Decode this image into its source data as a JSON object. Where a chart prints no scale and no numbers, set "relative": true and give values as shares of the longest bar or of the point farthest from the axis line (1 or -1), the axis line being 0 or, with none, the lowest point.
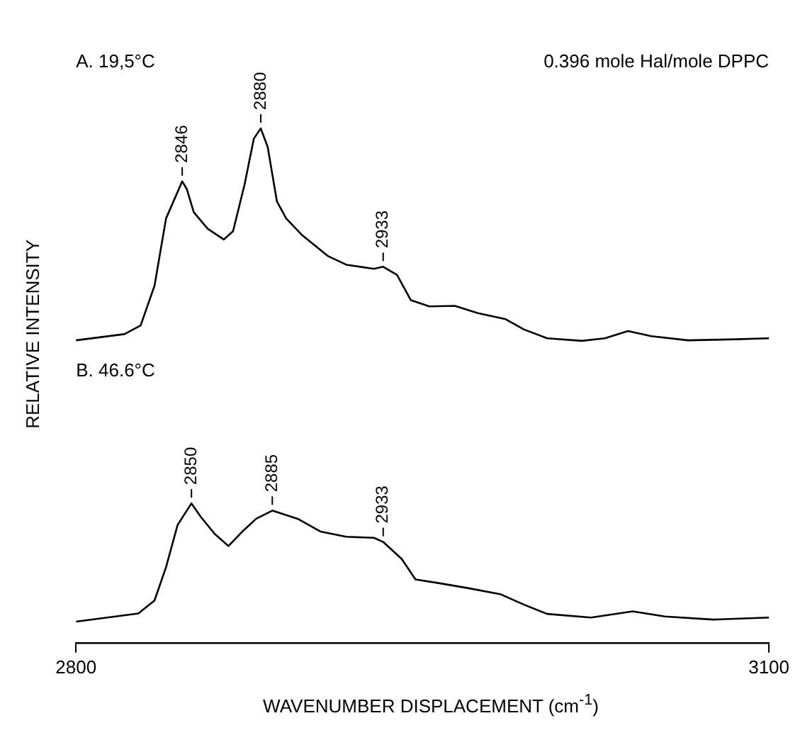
{
  "chart_data": {
    "type": "line",
    "relative": true,
    "xlabel": "WAVENUMBER DISPLACEMENT (cm$^{-1}$)",
    "ylabel": "RELATIVE INTENSITY",
    "xlim": [
      2800,
      3100
    ],
    "xticks": [
      2800,
      3100
    ],
    "grid": false,
    "legend": false,
    "marker": "none",
    "line_style": "solid",
    "series": [
      {
        "color": "#000000",
        "x": [
          2800,
          2821,
          2828,
          2834,
          2839,
          2846,
          2848,
          2851,
          2857,
          2864,
          2868,
          2873,
          2877,
          2880,
          2883,
          2887,
          2891,
          2898,
          2909,
          2917,
          2929,
          2933,
          2939,
          2945,
          2953,
          2964,
          2974,
          2986,
          2994,
          3004,
          3019,
          3029,
          3039,
          3049,
          3065,
          3086,
          3100
        ],
        "values": [
          0.588,
          0.6,
          0.617,
          0.694,
          0.825,
          0.897,
          0.882,
          0.837,
          0.805,
          0.784,
          0.8,
          0.891,
          0.98,
          1.0,
          0.964,
          0.858,
          0.825,
          0.792,
          0.752,
          0.735,
          0.727,
          0.731,
          0.715,
          0.666,
          0.654,
          0.655,
          0.641,
          0.629,
          0.609,
          0.592,
          0.587,
          0.592,
          0.606,
          0.596,
          0.588,
          0.59,
          0.592
        ]
      },
      {
        "color": "#000000",
        "x": [
          2800,
          2827,
          2834,
          2839,
          2844,
          2850,
          2854,
          2860,
          2866,
          2872,
          2878,
          2885,
          2896,
          2906,
          2917,
          2929,
          2933,
          2941,
          2947,
          2957,
          2970,
          2984,
          2994,
          3004,
          3023,
          3041,
          3055,
          3076,
          3100
        ],
        "values": [
          0.041,
          0.057,
          0.082,
          0.147,
          0.229,
          0.271,
          0.245,
          0.212,
          0.188,
          0.216,
          0.241,
          0.257,
          0.241,
          0.216,
          0.206,
          0.204,
          0.196,
          0.163,
          0.123,
          0.116,
          0.106,
          0.094,
          0.074,
          0.056,
          0.049,
          0.061,
          0.051,
          0.045,
          0.049
        ]
      }
    ],
    "annotations": [
      "A. 19,5°C",
      "0.396 mole Hal/mole DPPC",
      "B. 46.6°C",
      {
        "text": "2846",
        "x": 2846,
        "y": 0.897
      },
      {
        "text": "2880",
        "x": 2880,
        "y": 1.0
      },
      {
        "text": "2933",
        "x": 2933,
        "y": 0.731
      },
      {
        "text": "2850",
        "x": 2850,
        "y": 0.271
      },
      {
        "text": "2885",
        "x": 2885,
        "y": 0.257
      },
      {
        "text": "2933",
        "x": 2933,
        "y": 0.196
      }
    ]
  }
}
